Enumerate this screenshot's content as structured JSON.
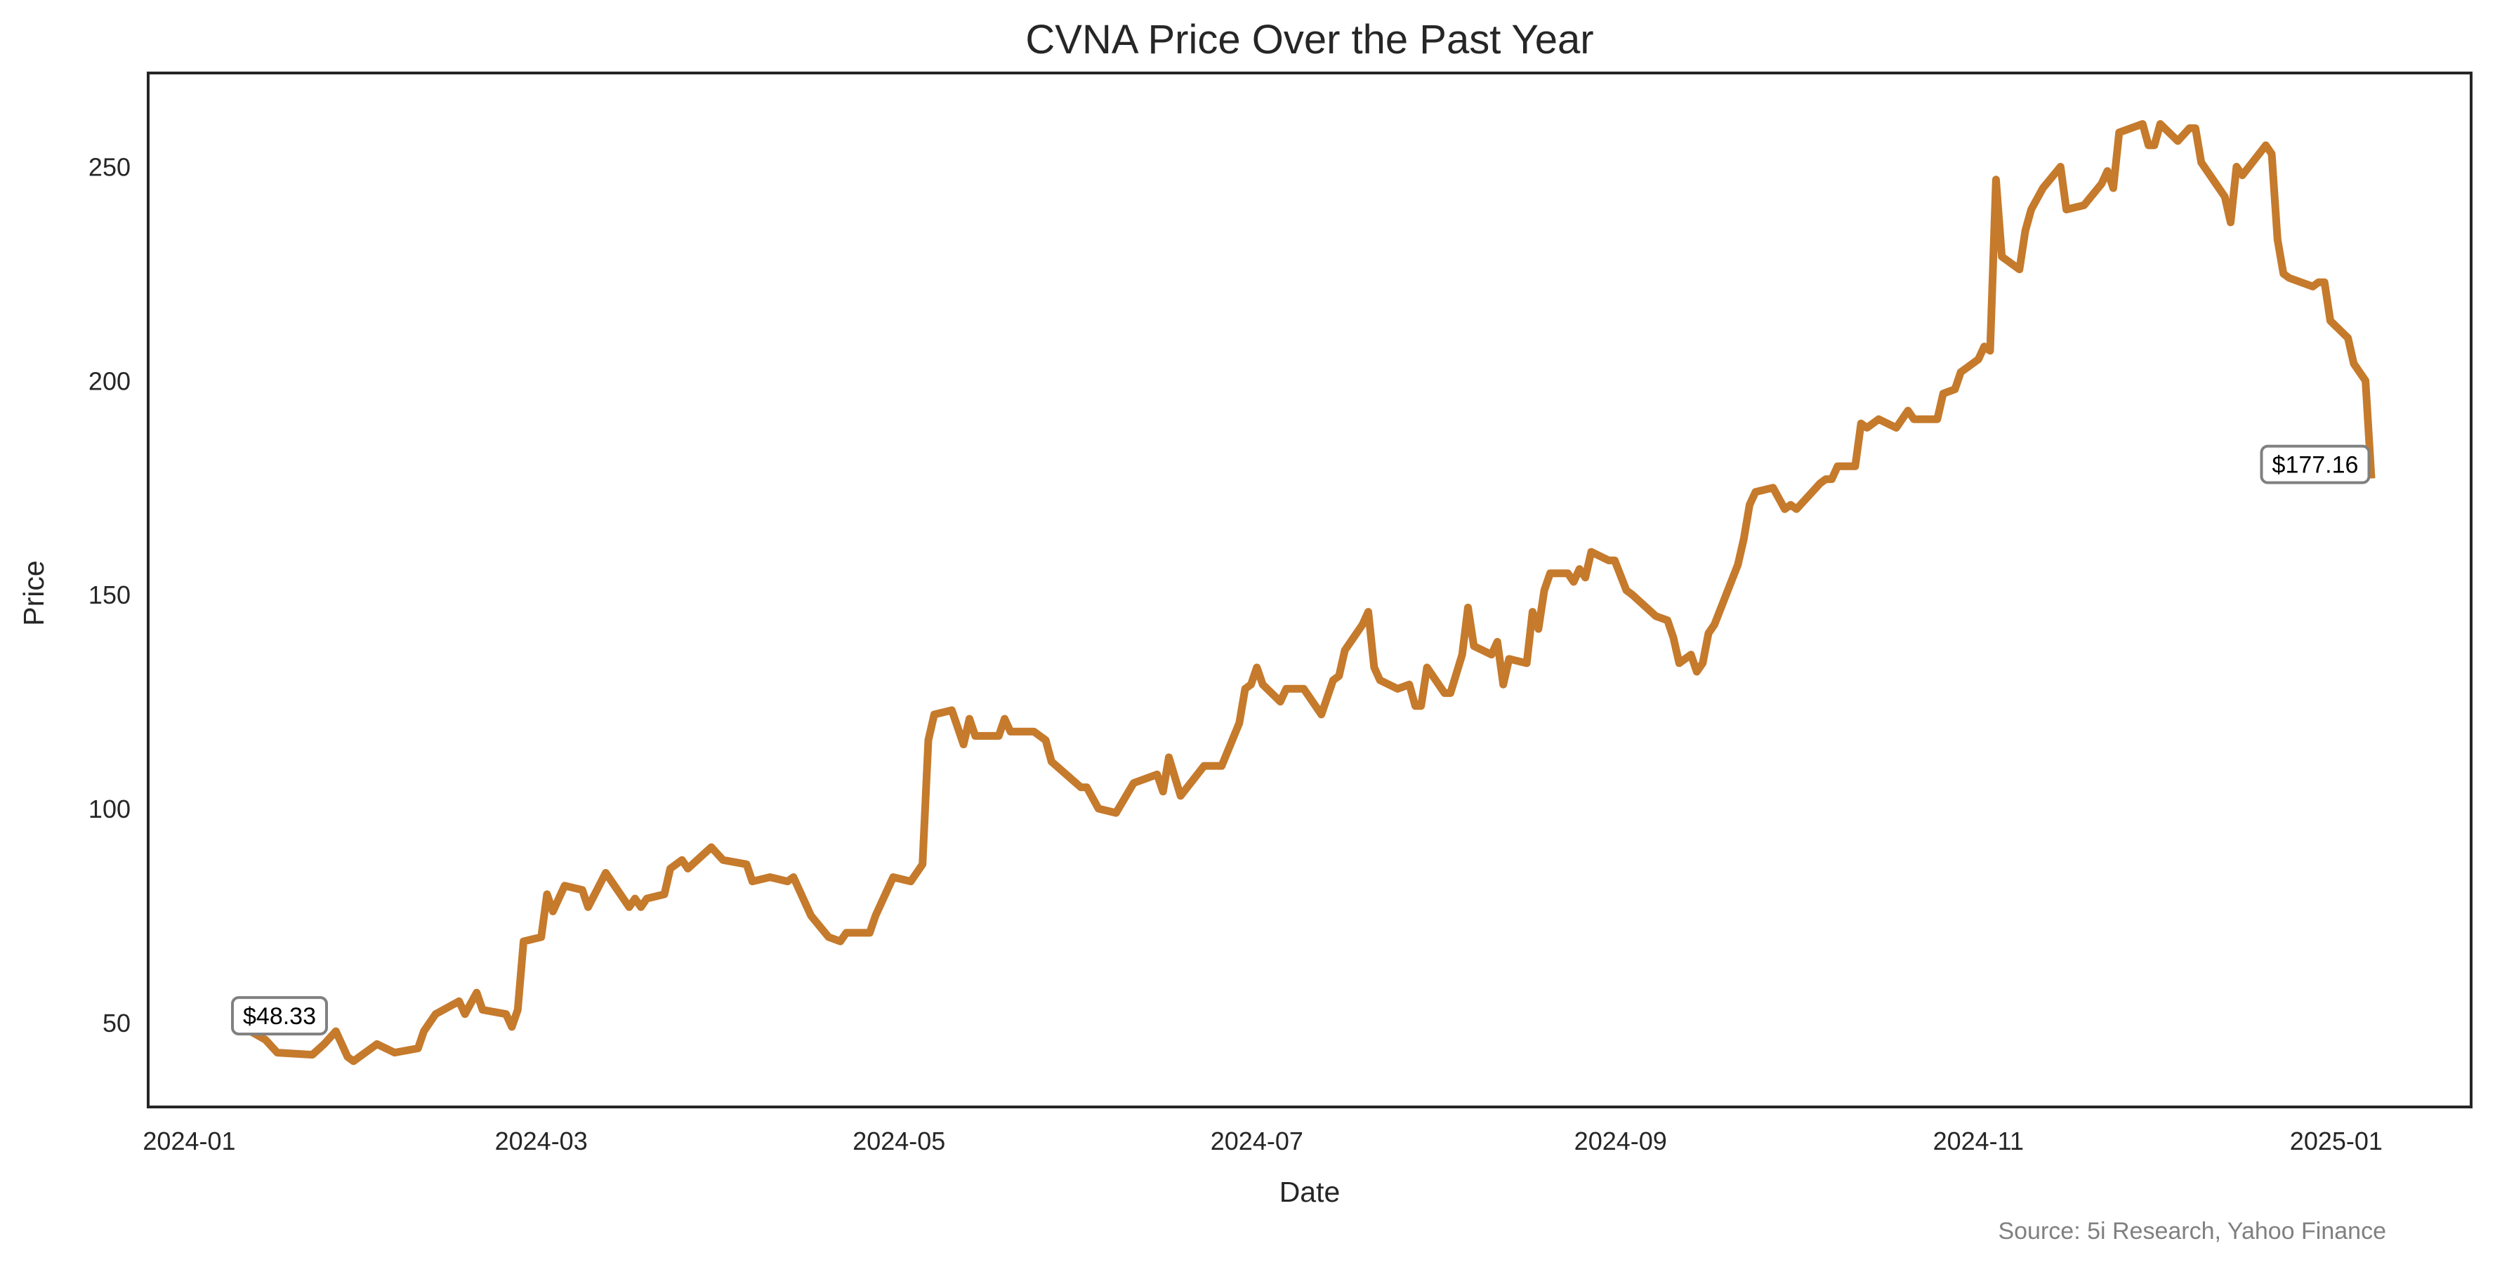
{
  "chart_data": {
    "type": "line",
    "title": "CVNA Price Over the Past Year",
    "xlabel": "Date",
    "ylabel": "Price",
    "source": "Source: 5i Research, Yahoo Finance",
    "xlim": [
      "2023-12-25",
      "2025-01-24"
    ],
    "ylim": [
      30.3,
      271.9
    ],
    "grid": false,
    "line_color": "#c57a2c",
    "x_ticks": [
      "2024-01",
      "2024-03",
      "2024-05",
      "2024-07",
      "2024-09",
      "2024-11",
      "2025-01"
    ],
    "x_tick_dates": [
      "2024-01-01",
      "2024-03-01",
      "2024-05-01",
      "2024-07-01",
      "2024-09-01",
      "2024-11-01",
      "2025-01-01"
    ],
    "y_ticks": [
      50,
      100,
      150,
      200,
      250
    ],
    "annotations": [
      {
        "label": "$48.33",
        "date": "2024-01-11",
        "value": 48.33
      },
      {
        "label": "$177.16",
        "date": "2025-01-07",
        "value": 177.16
      }
    ],
    "series": [
      {
        "points": [
          [
            "2024-01-11",
            48.33
          ],
          [
            "2024-01-14",
            46
          ],
          [
            "2024-01-16",
            43
          ],
          [
            "2024-01-22",
            42.5
          ],
          [
            "2024-01-24",
            45
          ],
          [
            "2024-01-26",
            48
          ],
          [
            "2024-01-28",
            42
          ],
          [
            "2024-01-29",
            41
          ],
          [
            "2024-02-02",
            45
          ],
          [
            "2024-02-05",
            43
          ],
          [
            "2024-02-09",
            44
          ],
          [
            "2024-02-10",
            48
          ],
          [
            "2024-02-12",
            52
          ],
          [
            "2024-02-16",
            55
          ],
          [
            "2024-02-17",
            52
          ],
          [
            "2024-02-19",
            57
          ],
          [
            "2024-02-20",
            53
          ],
          [
            "2024-02-24",
            52
          ],
          [
            "2024-02-25",
            49
          ],
          [
            "2024-02-26",
            53
          ],
          [
            "2024-02-27",
            69
          ],
          [
            "2024-03-01",
            70
          ],
          [
            "2024-03-02",
            80
          ],
          [
            "2024-03-03",
            76
          ],
          [
            "2024-03-05",
            82
          ],
          [
            "2024-03-08",
            81
          ],
          [
            "2024-03-09",
            77
          ],
          [
            "2024-03-12",
            85
          ],
          [
            "2024-03-16",
            77
          ],
          [
            "2024-03-17",
            79
          ],
          [
            "2024-03-18",
            77
          ],
          [
            "2024-03-19",
            79
          ],
          [
            "2024-03-22",
            80
          ],
          [
            "2024-03-23",
            86
          ],
          [
            "2024-03-25",
            88
          ],
          [
            "2024-03-26",
            86
          ],
          [
            "2024-03-30",
            91
          ],
          [
            "2024-04-01",
            88
          ],
          [
            "2024-04-05",
            87
          ],
          [
            "2024-04-06",
            83
          ],
          [
            "2024-04-09",
            84
          ],
          [
            "2024-04-12",
            83
          ],
          [
            "2024-04-13",
            84
          ],
          [
            "2024-04-14",
            81
          ],
          [
            "2024-04-16",
            75
          ],
          [
            "2024-04-19",
            70
          ],
          [
            "2024-04-21",
            69
          ],
          [
            "2024-04-22",
            71
          ],
          [
            "2024-04-26",
            71
          ],
          [
            "2024-04-27",
            75
          ],
          [
            "2024-04-30",
            84
          ],
          [
            "2024-05-03",
            83
          ],
          [
            "2024-05-05",
            87
          ],
          [
            "2024-05-06",
            116
          ],
          [
            "2024-05-07",
            122
          ],
          [
            "2024-05-10",
            123
          ],
          [
            "2024-05-12",
            115
          ],
          [
            "2024-05-13",
            121
          ],
          [
            "2024-05-14",
            117
          ],
          [
            "2024-05-18",
            117
          ],
          [
            "2024-05-19",
            121
          ],
          [
            "2024-05-20",
            118
          ],
          [
            "2024-05-24",
            118
          ],
          [
            "2024-05-26",
            116
          ],
          [
            "2024-05-27",
            111
          ],
          [
            "2024-06-01",
            105
          ],
          [
            "2024-06-02",
            105
          ],
          [
            "2024-06-04",
            100
          ],
          [
            "2024-06-07",
            99
          ],
          [
            "2024-06-10",
            106
          ],
          [
            "2024-06-14",
            108
          ],
          [
            "2024-06-15",
            104
          ],
          [
            "2024-06-16",
            112
          ],
          [
            "2024-06-18",
            103
          ],
          [
            "2024-06-22",
            110
          ],
          [
            "2024-06-25",
            110
          ],
          [
            "2024-06-28",
            120
          ],
          [
            "2024-06-29",
            128
          ],
          [
            "2024-06-30",
            129
          ],
          [
            "2024-07-01",
            133
          ],
          [
            "2024-07-02",
            129
          ],
          [
            "2024-07-05",
            125
          ],
          [
            "2024-07-06",
            128
          ],
          [
            "2024-07-09",
            128
          ],
          [
            "2024-07-12",
            122
          ],
          [
            "2024-07-14",
            130
          ],
          [
            "2024-07-15",
            131
          ],
          [
            "2024-07-16",
            137
          ],
          [
            "2024-07-19",
            143
          ],
          [
            "2024-07-20",
            146
          ],
          [
            "2024-07-21",
            133
          ],
          [
            "2024-07-22",
            130
          ],
          [
            "2024-07-25",
            128
          ],
          [
            "2024-07-27",
            129
          ],
          [
            "2024-07-28",
            124
          ],
          [
            "2024-07-29",
            124
          ],
          [
            "2024-07-30",
            133
          ],
          [
            "2024-08-02",
            127
          ],
          [
            "2024-08-03",
            127
          ],
          [
            "2024-08-05",
            136
          ],
          [
            "2024-08-06",
            147
          ],
          [
            "2024-08-07",
            138
          ],
          [
            "2024-08-10",
            136
          ],
          [
            "2024-08-11",
            139
          ],
          [
            "2024-08-12",
            129
          ],
          [
            "2024-08-13",
            135
          ],
          [
            "2024-08-16",
            134
          ],
          [
            "2024-08-17",
            146
          ],
          [
            "2024-08-18",
            142
          ],
          [
            "2024-08-19",
            151
          ],
          [
            "2024-08-20",
            155
          ],
          [
            "2024-08-23",
            155
          ],
          [
            "2024-08-24",
            153
          ],
          [
            "2024-08-25",
            156
          ],
          [
            "2024-08-26",
            154
          ],
          [
            "2024-08-27",
            160
          ],
          [
            "2024-08-30",
            158
          ],
          [
            "2024-08-31",
            158
          ],
          [
            "2024-09-02",
            151
          ],
          [
            "2024-09-03",
            150
          ],
          [
            "2024-09-07",
            145
          ],
          [
            "2024-09-09",
            144
          ],
          [
            "2024-09-10",
            140
          ],
          [
            "2024-09-11",
            134
          ],
          [
            "2024-09-13",
            136
          ],
          [
            "2024-09-14",
            132
          ],
          [
            "2024-09-15",
            134
          ],
          [
            "2024-09-16",
            141
          ],
          [
            "2024-09-17",
            143
          ],
          [
            "2024-09-21",
            157
          ],
          [
            "2024-09-22",
            163
          ],
          [
            "2024-09-23",
            171
          ],
          [
            "2024-09-24",
            174
          ],
          [
            "2024-09-27",
            175
          ],
          [
            "2024-09-29",
            170
          ],
          [
            "2024-09-30",
            171
          ],
          [
            "2024-10-01",
            170
          ],
          [
            "2024-10-05",
            176
          ],
          [
            "2024-10-06",
            177
          ],
          [
            "2024-10-07",
            177
          ],
          [
            "2024-10-08",
            180
          ],
          [
            "2024-10-11",
            180
          ],
          [
            "2024-10-12",
            190
          ],
          [
            "2024-10-13",
            189
          ],
          [
            "2024-10-15",
            191
          ],
          [
            "2024-10-18",
            189
          ],
          [
            "2024-10-20",
            193
          ],
          [
            "2024-10-21",
            191
          ],
          [
            "2024-10-25",
            191
          ],
          [
            "2024-10-26",
            197
          ],
          [
            "2024-10-28",
            198
          ],
          [
            "2024-10-29",
            202
          ],
          [
            "2024-11-01",
            205
          ],
          [
            "2024-11-02",
            208
          ],
          [
            "2024-11-03",
            207
          ],
          [
            "2024-11-04",
            247
          ],
          [
            "2024-11-05",
            229
          ],
          [
            "2024-11-08",
            226
          ],
          [
            "2024-11-09",
            235
          ],
          [
            "2024-11-10",
            240
          ],
          [
            "2024-11-12",
            245
          ],
          [
            "2024-11-15",
            250
          ],
          [
            "2024-11-16",
            240
          ],
          [
            "2024-11-19",
            241
          ],
          [
            "2024-11-22",
            246
          ],
          [
            "2024-11-23",
            249
          ],
          [
            "2024-11-24",
            245
          ],
          [
            "2024-11-25",
            258
          ],
          [
            "2024-11-29",
            260
          ],
          [
            "2024-11-30",
            255
          ],
          [
            "2024-12-01",
            255
          ],
          [
            "2024-12-02",
            260
          ],
          [
            "2024-12-05",
            256
          ],
          [
            "2024-12-07",
            259
          ],
          [
            "2024-12-08",
            259
          ],
          [
            "2024-12-09",
            251
          ],
          [
            "2024-12-13",
            243
          ],
          [
            "2024-12-14",
            237
          ],
          [
            "2024-12-15",
            250
          ],
          [
            "2024-12-16",
            248
          ],
          [
            "2024-12-20",
            255
          ],
          [
            "2024-12-21",
            253
          ],
          [
            "2024-12-22",
            233
          ],
          [
            "2024-12-23",
            225
          ],
          [
            "2024-12-24",
            224
          ],
          [
            "2024-12-28",
            222
          ],
          [
            "2024-12-29",
            223
          ],
          [
            "2024-12-30",
            223
          ],
          [
            "2024-12-31",
            214
          ],
          [
            "2025-01-03",
            210
          ],
          [
            "2025-01-04",
            204
          ],
          [
            "2025-01-06",
            200
          ],
          [
            "2025-01-07",
            177.16
          ]
        ]
      }
    ]
  }
}
